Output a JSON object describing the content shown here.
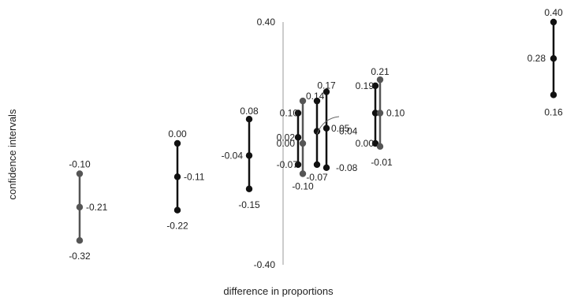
{
  "chart_data": {
    "type": "scatter",
    "xlabel": "difference in proportions",
    "ylabel": "confidence intervals",
    "ylim": [
      -0.4,
      0.4
    ],
    "yticks": [
      "0.40",
      "-0.40"
    ],
    "grid": false,
    "colors": {
      "marker": "#111111",
      "marker_alt": "#555555",
      "axis": "#bbbbbb",
      "text": "#222222"
    },
    "intervals": [
      {
        "estimate": -0.21,
        "lower": -0.32,
        "upper": -0.1,
        "labels": {
          "lower": "-0.32",
          "estimate": "-0.21",
          "upper": "-0.10"
        }
      },
      {
        "estimate": -0.11,
        "lower": -0.22,
        "upper": 0.0,
        "labels": {
          "lower": "-0.22",
          "estimate": "-0.11",
          "upper": "0.00"
        }
      },
      {
        "estimate": -0.04,
        "lower": -0.15,
        "upper": 0.08,
        "labels": {
          "lower": "-0.15",
          "estimate": "-0.04",
          "upper": "0.08"
        }
      },
      {
        "estimate": 0.02,
        "lower": -0.07,
        "upper": 0.1,
        "labels": {
          "lower": "-0.07",
          "estimate": "0.02",
          "upper": "0.10"
        }
      },
      {
        "estimate": 0.0,
        "lower": -0.1,
        "upper": 0.14,
        "labels": {
          "lower": "-0.10",
          "estimate": "0.00",
          "upper": "0.14"
        }
      },
      {
        "estimate": 0.04,
        "lower": -0.07,
        "upper": 0.14,
        "labels": {
          "lower": "-0.07",
          "estimate": "0.04",
          "upper": ""
        }
      },
      {
        "estimate": 0.05,
        "lower": -0.08,
        "upper": 0.17,
        "labels": {
          "lower": "-0.08",
          "estimate": "0.05",
          "upper": "0.17"
        }
      },
      {
        "estimate": 0.1,
        "lower": 0.0,
        "upper": 0.19,
        "labels": {
          "lower": "0.00",
          "estimate": "",
          "upper": "0.19"
        }
      },
      {
        "estimate": 0.1,
        "lower": -0.01,
        "upper": 0.21,
        "labels": {
          "lower": "-0.01",
          "estimate": "0.10",
          "upper": "0.21"
        }
      },
      {
        "estimate": 0.28,
        "lower": 0.16,
        "upper": 0.4,
        "labels": {
          "lower": "0.16",
          "estimate": "0.28",
          "upper": "0.40"
        }
      }
    ]
  }
}
